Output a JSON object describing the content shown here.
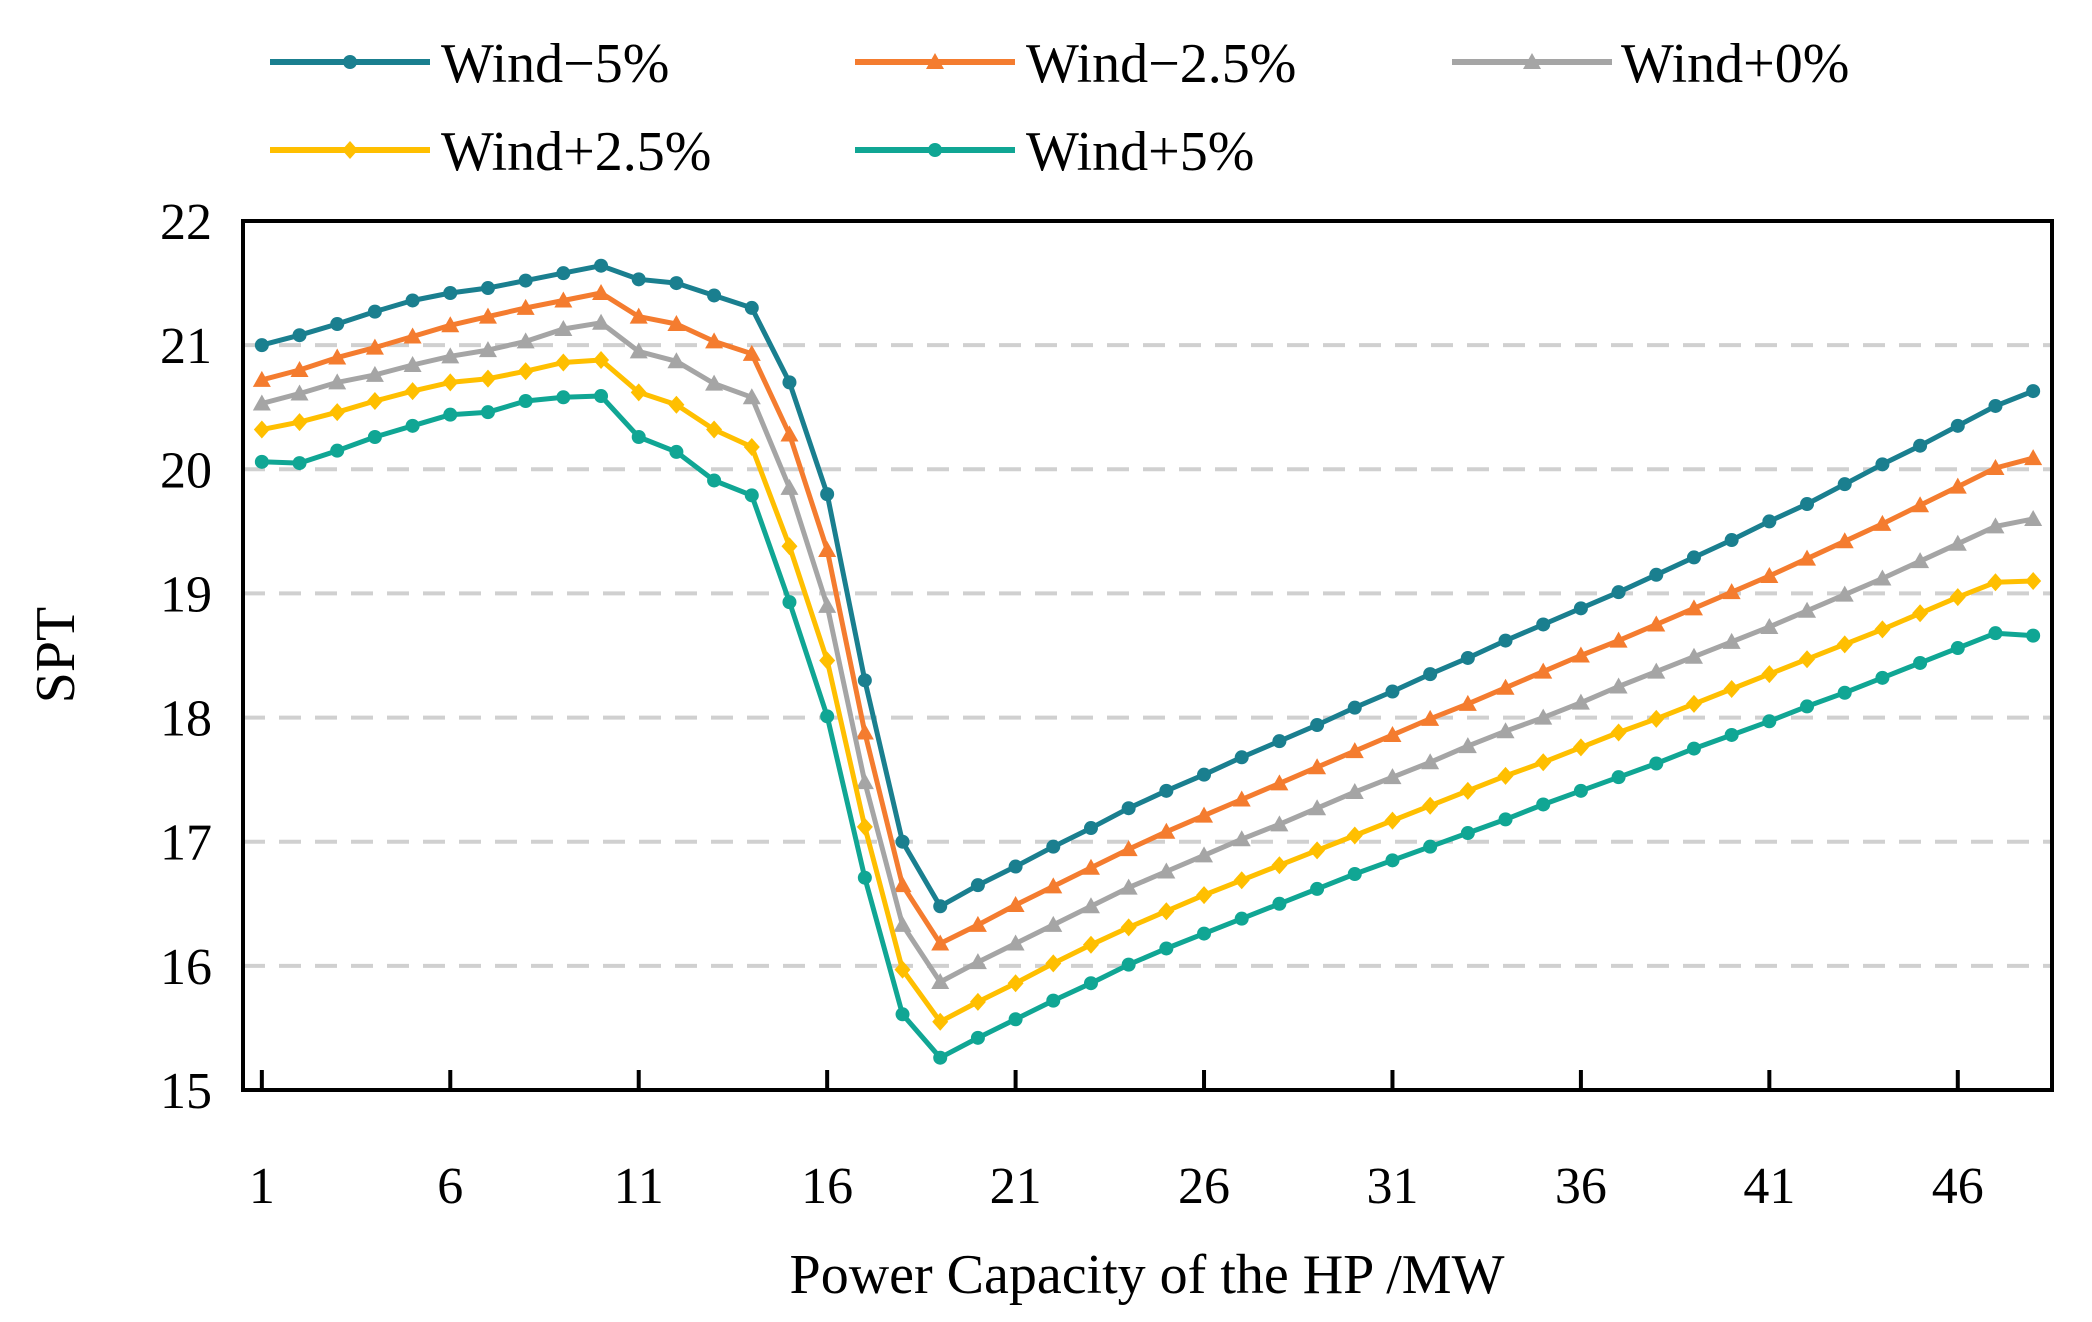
{
  "chart_data": {
    "type": "line",
    "title": "",
    "xlabel": "Power Capacity of the HP /MW",
    "ylabel": "SPT",
    "x_tick_labels": [
      "1",
      "6",
      "11",
      "16",
      "21",
      "26",
      "31",
      "36",
      "41",
      "46"
    ],
    "y_tick_labels": [
      "15",
      "16",
      "17",
      "18",
      "19",
      "20",
      "21",
      "22"
    ],
    "x_tick_values": [
      1,
      6,
      11,
      16,
      21,
      26,
      31,
      36,
      41,
      46
    ],
    "y_tick_values": [
      15,
      16,
      17,
      18,
      19,
      20,
      21,
      22
    ],
    "xlim": [
      0.5,
      48.5
    ],
    "ylim": [
      15,
      22
    ],
    "grid": "horizontal dashed",
    "legend_position": "top",
    "series": [
      {
        "name": "Wind−5%",
        "color": "#1a7f8f",
        "marker": "circle",
        "values": [
          21.0,
          21.08,
          21.17,
          21.27,
          21.36,
          21.42,
          21.46,
          21.52,
          21.58,
          21.64,
          21.53,
          21.5,
          21.4,
          21.3,
          20.7,
          19.8,
          18.3,
          17.0,
          16.48,
          16.65,
          16.8,
          16.96,
          17.11,
          17.27,
          17.41,
          17.54,
          17.68,
          17.81,
          17.94,
          18.08,
          18.21,
          18.35,
          18.48,
          18.62,
          18.75,
          18.88,
          19.01,
          19.15,
          19.29,
          19.43,
          19.58,
          19.72,
          19.88,
          20.04,
          20.19,
          20.35,
          20.51,
          20.63
        ]
      },
      {
        "name": "Wind−2.5%",
        "color": "#f47c2f",
        "marker": "triangle",
        "values": [
          20.72,
          20.8,
          20.9,
          20.98,
          21.07,
          21.16,
          21.23,
          21.3,
          21.36,
          21.42,
          21.23,
          21.17,
          21.03,
          20.93,
          20.28,
          19.35,
          17.88,
          16.65,
          16.18,
          16.33,
          16.49,
          16.64,
          16.79,
          16.94,
          17.08,
          17.21,
          17.34,
          17.47,
          17.6,
          17.73,
          17.86,
          17.99,
          18.11,
          18.24,
          18.37,
          18.5,
          18.62,
          18.75,
          18.88,
          19.01,
          19.14,
          19.28,
          19.42,
          19.56,
          19.71,
          19.86,
          20.01,
          20.09
        ]
      },
      {
        "name": "Wind+0%",
        "color": "#a5a5a5",
        "marker": "triangle",
        "values": [
          20.53,
          20.61,
          20.7,
          20.76,
          20.84,
          20.91,
          20.96,
          21.03,
          21.13,
          21.18,
          20.95,
          20.87,
          20.69,
          20.58,
          19.85,
          18.9,
          17.48,
          16.33,
          15.87,
          16.03,
          16.18,
          16.33,
          16.48,
          16.63,
          16.76,
          16.89,
          17.02,
          17.14,
          17.27,
          17.4,
          17.52,
          17.64,
          17.77,
          17.89,
          18.0,
          18.12,
          18.25,
          18.37,
          18.49,
          18.61,
          18.73,
          18.86,
          18.99,
          19.12,
          19.26,
          19.4,
          19.54,
          19.6
        ]
      },
      {
        "name": "Wind+2.5%",
        "color": "#ffbf00",
        "marker": "diamond",
        "values": [
          20.32,
          20.38,
          20.46,
          20.55,
          20.63,
          20.7,
          20.73,
          20.79,
          20.86,
          20.88,
          20.62,
          20.52,
          20.32,
          20.18,
          19.38,
          18.46,
          17.12,
          15.97,
          15.55,
          15.71,
          15.86,
          16.02,
          16.17,
          16.31,
          16.44,
          16.57,
          16.69,
          16.81,
          16.93,
          17.05,
          17.17,
          17.29,
          17.41,
          17.53,
          17.64,
          17.76,
          17.88,
          17.99,
          18.11,
          18.23,
          18.35,
          18.47,
          18.59,
          18.71,
          18.84,
          18.97,
          19.09,
          19.1
        ]
      },
      {
        "name": "Wind+5%",
        "color": "#10a694",
        "marker": "circle",
        "values": [
          20.06,
          20.05,
          20.15,
          20.26,
          20.35,
          20.44,
          20.46,
          20.55,
          20.58,
          20.59,
          20.26,
          20.14,
          19.91,
          19.79,
          18.93,
          18.01,
          16.71,
          15.61,
          15.26,
          15.42,
          15.57,
          15.72,
          15.86,
          16.01,
          16.14,
          16.26,
          16.38,
          16.5,
          16.62,
          16.74,
          16.85,
          16.96,
          17.07,
          17.18,
          17.3,
          17.41,
          17.52,
          17.63,
          17.75,
          17.86,
          17.97,
          18.09,
          18.2,
          18.32,
          18.44,
          18.56,
          18.68,
          18.66
        ]
      }
    ]
  }
}
